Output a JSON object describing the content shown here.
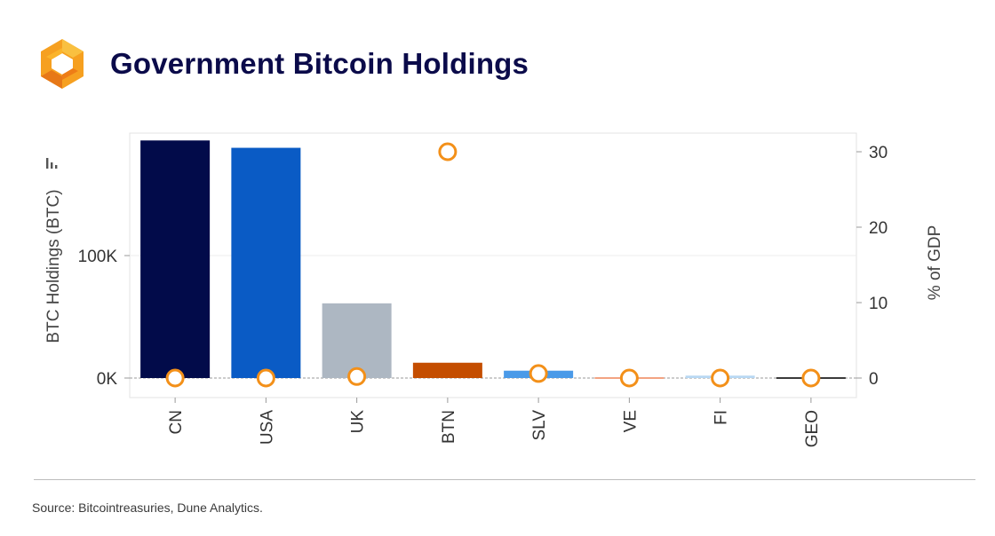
{
  "header": {
    "title": "Government Bitcoin Holdings",
    "logo": "orange-hexagon-logo"
  },
  "source": "Source: Bitcointreasuries, Dune Analytics.",
  "colors": {
    "title": "#0b0b4a",
    "marker": "#f39019",
    "grid": "#ececec"
  },
  "chart_data": {
    "type": "bar",
    "title": "",
    "categories": [
      "CN",
      "USA",
      "UK",
      "BTN",
      "SLV",
      "VE",
      "FI",
      "GEO"
    ],
    "series": [
      {
        "name": "BTC Holdings (BTC)",
        "axis": "left",
        "type": "bar",
        "values": [
          194000,
          188000,
          61000,
          12500,
          6000,
          240,
          1980,
          66
        ],
        "colors": [
          "#020b4a",
          "#0a5bc5",
          "#adb7c2",
          "#c44d00",
          "#4a9ae8",
          "#f3a382",
          "#b8d8f3",
          "#3a3a3a"
        ]
      },
      {
        "name": "% of GDP",
        "axis": "right",
        "type": "scatter",
        "values": [
          0.0,
          0.0,
          0.2,
          30.0,
          0.6,
          0.0,
          0.0,
          0.0
        ]
      }
    ],
    "ylabel": "BTC Holdings (BTC)",
    "y2label": "% of GDP",
    "ylim": [
      -20000,
      200000
    ],
    "y_ticks": [
      0,
      100000
    ],
    "y_tick_labels": [
      "0K",
      "100K"
    ],
    "y2lim": [
      -3,
      32
    ],
    "y2_ticks": [
      0,
      10,
      20,
      30
    ],
    "y2_tick_labels": [
      "0",
      "10",
      "20",
      "30"
    ],
    "grid": true,
    "legend": "none"
  }
}
